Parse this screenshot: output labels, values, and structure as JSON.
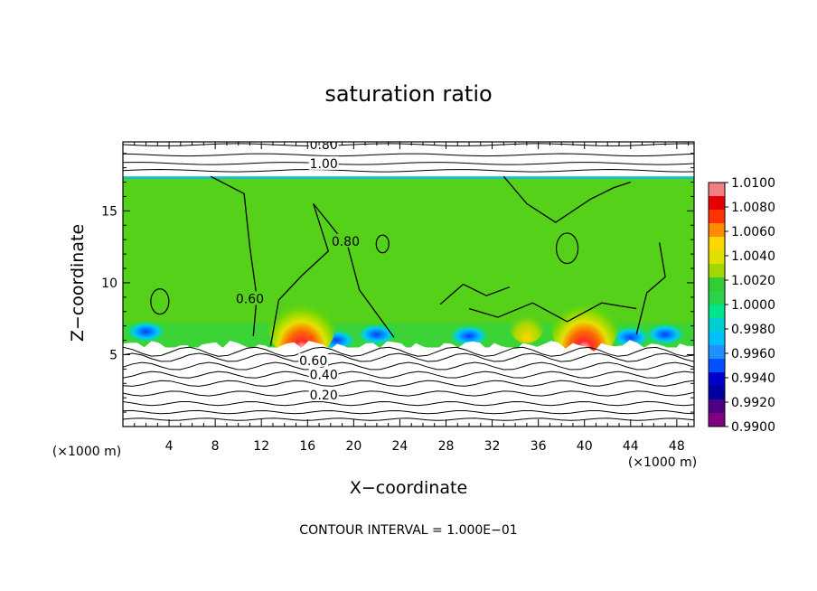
{
  "chart_data": {
    "type": "heatmap",
    "title": "saturation ratio",
    "xlabel": "X−coordinate",
    "ylabel": "Z−coordinate",
    "x_unit_label": "(×1000 m)",
    "z_unit_label": "(×1000 m)",
    "footer": "CONTOUR INTERVAL = 1.000E−01",
    "xlim": [
      0,
      49.5
    ],
    "ylim": [
      0,
      19.8
    ],
    "x_ticks": [
      4,
      8,
      12,
      16,
      20,
      24,
      28,
      32,
      36,
      40,
      44,
      48
    ],
    "y_ticks": [
      5,
      10,
      15
    ],
    "contour_interval": 0.1,
    "contour_labels": [
      "0.20",
      "0.40",
      "0.60",
      "0.80",
      "1.00",
      "0.60",
      "0.80"
    ],
    "colorbar": {
      "min": 0.99,
      "max": 1.01,
      "tick_labels": [
        "1.0100",
        "1.0080",
        "1.0060",
        "1.0040",
        "1.0020",
        "1.0000",
        "0.9980",
        "0.9960",
        "0.9940",
        "0.9920",
        "0.9900"
      ],
      "colors": [
        "#f08080",
        "#e60000",
        "#ff3300",
        "#ff8c00",
        "#ffd700",
        "#e0e000",
        "#a0d800",
        "#32cd32",
        "#2ad44a",
        "#00e58c",
        "#00ced1",
        "#00bfff",
        "#1e90ff",
        "#0050ff",
        "#0000cd",
        "#0000a0",
        "#4b0082",
        "#800080"
      ]
    },
    "field_region": {
      "z_bottom": 5.5,
      "z_top": 17.4
    },
    "hotspots": [
      {
        "x": 15.5,
        "z": 5.8,
        "value": 1.01
      },
      {
        "x": 40.0,
        "z": 5.8,
        "value": 1.008
      },
      {
        "x": 35.0,
        "z": 6.3,
        "value": 1.004
      }
    ],
    "contour_lines_below_z": [
      0.5,
      1.0,
      1.6,
      2.3,
      3.0,
      3.6,
      4.2,
      4.8,
      5.2
    ],
    "contour_lines_above_z": [
      17.8,
      18.3,
      18.9,
      19.6
    ]
  }
}
